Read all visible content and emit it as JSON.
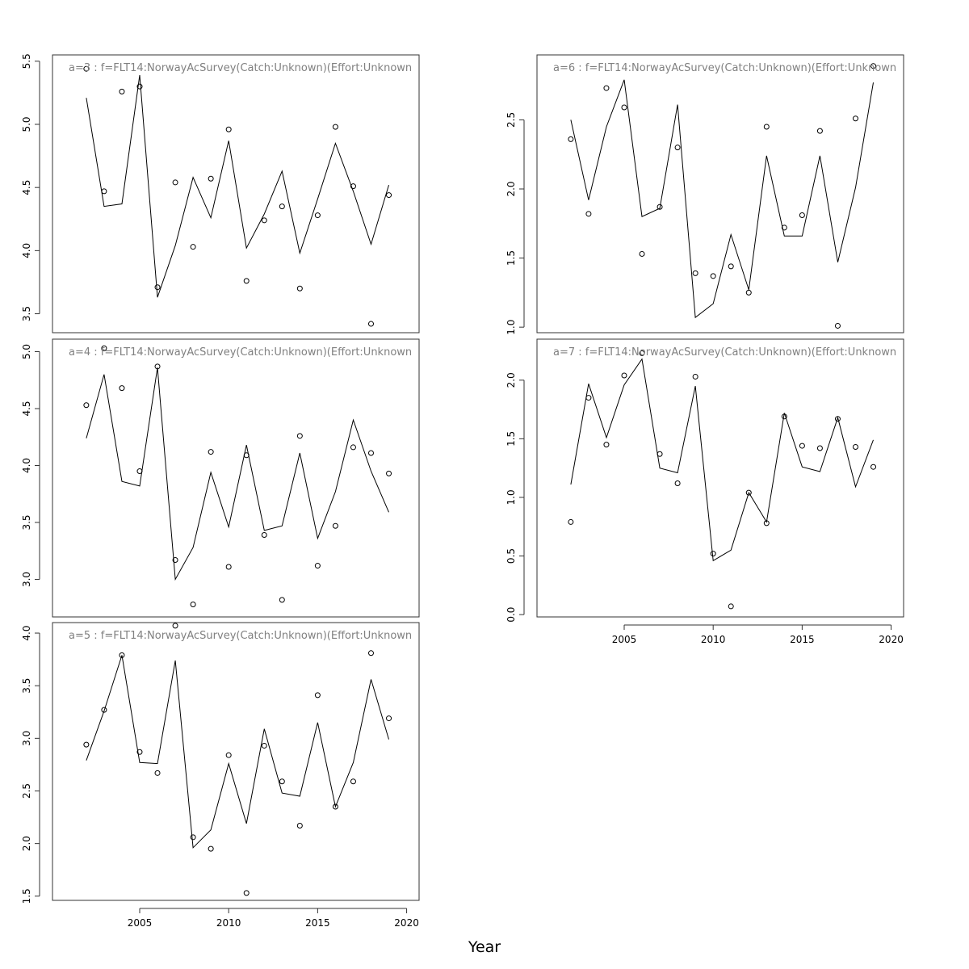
{
  "chart_data": {
    "type": "line",
    "xlabel": "Year",
    "years": [
      2002,
      2003,
      2004,
      2005,
      2006,
      2007,
      2008,
      2009,
      2010,
      2011,
      2012,
      2013,
      2014,
      2015,
      2016,
      2017,
      2018,
      2019
    ],
    "xlim": [
      2000.1,
      2020.7
    ],
    "xticks": [
      2005,
      2010,
      2015,
      2020
    ],
    "panels": [
      {
        "title": "a=3  :  f=FLT14:NorwayAcSurvey(Catch:Unknown)(Effort:Unknown",
        "ylim": [
          3.35,
          5.55
        ],
        "yticks": [
          3.5,
          4.0,
          4.5,
          5.0,
          5.5
        ],
        "fitted": [
          5.21,
          4.35,
          4.37,
          5.39,
          3.63,
          4.04,
          4.58,
          4.26,
          4.87,
          4.02,
          4.29,
          4.63,
          3.98,
          4.41,
          4.85,
          4.47,
          4.05,
          4.52
        ],
        "observed": [
          5.44,
          4.47,
          5.26,
          5.3,
          3.71,
          4.54,
          4.03,
          4.57,
          4.96,
          3.76,
          4.24,
          4.35,
          3.7,
          4.28,
          4.98,
          4.51,
          3.42,
          4.44
        ]
      },
      {
        "title": "a=4  :  f=FLT14:NorwayAcSurvey(Catch:Unknown)(Effort:Unknown",
        "ylim": [
          2.67,
          5.11
        ],
        "yticks": [
          3.0,
          3.5,
          4.0,
          4.5,
          5.0
        ],
        "fitted": [
          4.24,
          4.8,
          3.86,
          3.82,
          4.86,
          3.0,
          3.28,
          3.94,
          3.46,
          4.18,
          3.43,
          3.47,
          4.11,
          3.36,
          3.77,
          4.4,
          3.95,
          3.59
        ],
        "observed": [
          4.53,
          5.03,
          4.68,
          3.95,
          4.87,
          3.17,
          2.78,
          4.12,
          3.11,
          4.09,
          3.39,
          2.82,
          4.26,
          3.12,
          3.47,
          4.16,
          4.11,
          3.93
        ]
      },
      {
        "title": "a=5  :  f=FLT14:NorwayAcSurvey(Catch:Unknown)(Effort:Unknown",
        "ylim": [
          1.46,
          4.1
        ],
        "yticks": [
          1.5,
          2.0,
          2.5,
          3.0,
          3.5,
          4.0
        ],
        "fitted": [
          2.79,
          3.26,
          3.79,
          2.77,
          2.76,
          3.74,
          1.96,
          2.13,
          2.76,
          2.19,
          3.09,
          2.48,
          2.45,
          3.15,
          2.35,
          2.77,
          3.56,
          2.99
        ],
        "observed": [
          2.94,
          3.27,
          3.79,
          2.87,
          2.67,
          4.07,
          2.06,
          1.95,
          2.84,
          1.53,
          2.93,
          2.59,
          2.17,
          3.41,
          2.35,
          2.59,
          3.81,
          3.19
        ]
      },
      {
        "title": "a=6  :  f=FLT14:NorwayAcSurvey(Catch:Unknown)(Effort:Unknown",
        "ylim": [
          0.96,
          2.97
        ],
        "yticks": [
          1.0,
          1.5,
          2.0,
          2.5
        ],
        "fitted": [
          2.5,
          1.92,
          2.45,
          2.79,
          1.8,
          1.86,
          2.61,
          1.07,
          1.17,
          1.67,
          1.27,
          2.24,
          1.66,
          1.66,
          2.24,
          1.47,
          2.01,
          2.77
        ],
        "observed": [
          2.36,
          1.82,
          2.73,
          2.59,
          1.53,
          1.87,
          2.3,
          1.39,
          1.37,
          1.44,
          1.25,
          2.45,
          1.72,
          1.81,
          2.42,
          1.01,
          2.51,
          2.89
        ]
      },
      {
        "title": "a=7  :  f=FLT14:NorwayAcSurvey(Catch:Unknown)(Effort:Unknown",
        "ylim": [
          -0.02,
          2.35
        ],
        "yticks": [
          0.0,
          0.5,
          1.0,
          1.5,
          2.0
        ],
        "fitted": [
          1.11,
          1.97,
          1.51,
          1.96,
          2.18,
          1.25,
          1.21,
          1.95,
          0.46,
          0.55,
          1.04,
          0.79,
          1.72,
          1.26,
          1.22,
          1.68,
          1.09,
          1.49
        ],
        "observed": [
          0.79,
          1.85,
          1.45,
          2.04,
          2.23,
          1.37,
          1.12,
          2.03,
          0.52,
          0.07,
          1.04,
          0.78,
          1.69,
          1.44,
          1.42,
          1.67,
          1.43,
          1.26
        ]
      }
    ]
  }
}
